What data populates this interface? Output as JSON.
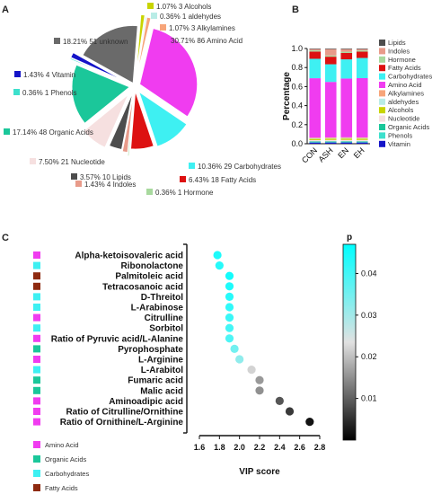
{
  "panels": {
    "a": "A",
    "b": "B",
    "c": "C"
  },
  "colors": {
    "Alcohols": "#c8d400",
    "aldehydes": "#b9ece6",
    "Alkylamines": "#f7a57a",
    "Amino Acid": "#f03cf0",
    "Carbohydrates": "#3ef0f2",
    "Fatty Acids": "#8e2a10",
    "Hormone": "#a8d99e",
    "Indoles": "#e89b8a",
    "Lipids": "#4d4d4d",
    "Nucleotide": "#f6e0e0",
    "Organic Acids": "#1bc79a",
    "Phenols": "#3de0cc",
    "unknown": "#6a6a6a",
    "Vitamin": "#1414c8",
    "Red": "#dd1111"
  },
  "chart_data": [
    {
      "type": "pie",
      "panel": "A",
      "slices": [
        {
          "name": "Alcohols",
          "percent": 1.07,
          "count": 3,
          "label": "1.07%  3 Alcohols"
        },
        {
          "name": "aldehydes",
          "percent": 0.36,
          "count": 1,
          "label": "0.36%  1 aldehydes"
        },
        {
          "name": "Alkylamines",
          "percent": 1.07,
          "count": 3,
          "label": "1.07%  3 Alkylamines"
        },
        {
          "name": "Amino Acid",
          "percent": 30.71,
          "count": 86,
          "label": "30.71%  86 Amino Acid"
        },
        {
          "name": "Carbohydrates",
          "percent": 10.36,
          "count": 29,
          "label": "10.36%  29 Carbohydrates"
        },
        {
          "name": "Fatty Acids",
          "percent": 6.43,
          "count": 18,
          "label": "6.43%  18 Fatty Acids"
        },
        {
          "name": "Hormone",
          "percent": 0.36,
          "count": 1,
          "label": "0.36%  1 Hormone"
        },
        {
          "name": "Indoles",
          "percent": 1.43,
          "count": 4,
          "label": "1.43%  4 Indoles"
        },
        {
          "name": "Lipids",
          "percent": 3.57,
          "count": 10,
          "label": "3.57%  10 Lipids"
        },
        {
          "name": "Nucleotide",
          "percent": 7.5,
          "count": 21,
          "label": "7.50%  21 Nucleotide"
        },
        {
          "name": "Organic Acids",
          "percent": 17.14,
          "count": 48,
          "label": "17.14%  48 Organic Acids"
        },
        {
          "name": "Phenols",
          "percent": 0.36,
          "count": 1,
          "label": "0.36%  1 Phenols"
        },
        {
          "name": "Vitamin",
          "percent": 1.43,
          "count": 4,
          "label": "1.43%  4 Vitamin"
        },
        {
          "name": "unknown",
          "percent": 18.21,
          "count": 51,
          "label": "18.21%  51 unknown"
        }
      ]
    },
    {
      "type": "bar",
      "panel": "B",
      "stacked": true,
      "categories": [
        "CON",
        "ASH",
        "EN",
        "EH"
      ],
      "ylabel": "Percentage",
      "ylim": [
        0,
        1.0
      ],
      "yticks": [
        "0.0",
        "0.2",
        "0.4",
        "0.6",
        "0.8",
        "1.0"
      ],
      "series": [
        {
          "name": "Vitamin",
          "values": [
            0.01,
            0.01,
            0.01,
            0.01
          ]
        },
        {
          "name": "Phenols",
          "values": [
            0.005,
            0.005,
            0.005,
            0.005
          ]
        },
        {
          "name": "Organic Acids",
          "values": [
            0.005,
            0.005,
            0.005,
            0.005
          ]
        },
        {
          "name": "Nucleotide",
          "values": [
            0.01,
            0.01,
            0.01,
            0.01
          ]
        },
        {
          "name": "Alcohols",
          "values": [
            0.01,
            0.01,
            0.01,
            0.01
          ]
        },
        {
          "name": "aldehydes",
          "values": [
            0.005,
            0.005,
            0.005,
            0.005
          ]
        },
        {
          "name": "Alkylamines",
          "values": [
            0.005,
            0.005,
            0.005,
            0.005
          ]
        },
        {
          "name": "Amino Acid",
          "values": [
            0.49,
            0.44,
            0.46,
            0.47
          ]
        },
        {
          "name": "Carbohydrates",
          "values": [
            0.16,
            0.14,
            0.15,
            0.16
          ]
        },
        {
          "name": "Fatty Acids",
          "values": [
            0.06,
            0.06,
            0.05,
            0.05
          ]
        },
        {
          "name": "Hormone",
          "values": [
            0.01,
            0.01,
            0.01,
            0.01
          ]
        },
        {
          "name": "Indoles",
          "values": [
            0.01,
            0.05,
            0.02,
            0.01
          ]
        },
        {
          "name": "Lipids",
          "values": [
            0.005,
            0.005,
            0.005,
            0.005
          ]
        }
      ],
      "legend": [
        "Lipids",
        "Indoles",
        "Hormone",
        "Fatty Acids",
        "Carbohydrates",
        "Amino Acid",
        "Alkylamines",
        "aldehydes",
        "Alcohols",
        "Nucleotide",
        "Organic Acids",
        "Phenols",
        "Vitamin"
      ]
    },
    {
      "type": "scatter",
      "panel": "C",
      "xlabel": "VIP score",
      "xlim": [
        1.6,
        2.8
      ],
      "xticks": [
        "1.6",
        "1.8",
        "2.0",
        "2.2",
        "2.4",
        "2.6",
        "2.8"
      ],
      "colorbar": {
        "title": "p",
        "ticks": [
          "0.04",
          "0.03",
          "0.02",
          "0.01"
        ],
        "min": 0.0,
        "max": 0.047
      },
      "points": [
        {
          "metabolite": "Alpha-ketoisovaleric acid",
          "vip": 1.78,
          "p": 0.044,
          "class": "Amino Acid"
        },
        {
          "metabolite": "Ribonolactone",
          "vip": 1.8,
          "p": 0.043,
          "class": "Carbohydrates"
        },
        {
          "metabolite": "Palmitoleic acid",
          "vip": 1.9,
          "p": 0.045,
          "class": "Fatty Acids"
        },
        {
          "metabolite": "Tetracosanoic acid",
          "vip": 1.9,
          "p": 0.044,
          "class": "Fatty Acids"
        },
        {
          "metabolite": "D-Threitol",
          "vip": 1.9,
          "p": 0.043,
          "class": "Carbohydrates"
        },
        {
          "metabolite": "L-Arabinose",
          "vip": 1.9,
          "p": 0.042,
          "class": "Carbohydrates"
        },
        {
          "metabolite": "Citrulline",
          "vip": 1.9,
          "p": 0.041,
          "class": "Amino Acid"
        },
        {
          "metabolite": "Sorbitol",
          "vip": 1.9,
          "p": 0.04,
          "class": "Carbohydrates"
        },
        {
          "metabolite": "Ratio of Pyruvic acid/L-Alanine",
          "vip": 1.9,
          "p": 0.039,
          "class": "Amino Acid"
        },
        {
          "metabolite": "Pyrophosphate",
          "vip": 1.95,
          "p": 0.035,
          "class": "Organic Acids"
        },
        {
          "metabolite": "L-Arginine",
          "vip": 2.0,
          "p": 0.032,
          "class": "Amino Acid"
        },
        {
          "metabolite": "L-Arabitol",
          "vip": 2.12,
          "p": 0.022,
          "class": "Carbohydrates"
        },
        {
          "metabolite": "Fumaric acid",
          "vip": 2.2,
          "p": 0.016,
          "class": "Organic Acids"
        },
        {
          "metabolite": "Malic acid",
          "vip": 2.2,
          "p": 0.015,
          "class": "Organic Acids"
        },
        {
          "metabolite": "Aminoadipic acid",
          "vip": 2.4,
          "p": 0.009,
          "class": "Amino Acid"
        },
        {
          "metabolite": "Ratio of Citrulline/Ornithine",
          "vip": 2.5,
          "p": 0.006,
          "class": "Amino Acid"
        },
        {
          "metabolite": "Ratio of Ornithine/L-Arginine",
          "vip": 2.7,
          "p": 0.002,
          "class": "Amino Acid"
        }
      ],
      "class_legend": [
        "Amino Acid",
        "Organic Acids",
        "Carbohydrates",
        "Fatty Acids"
      ]
    }
  ]
}
